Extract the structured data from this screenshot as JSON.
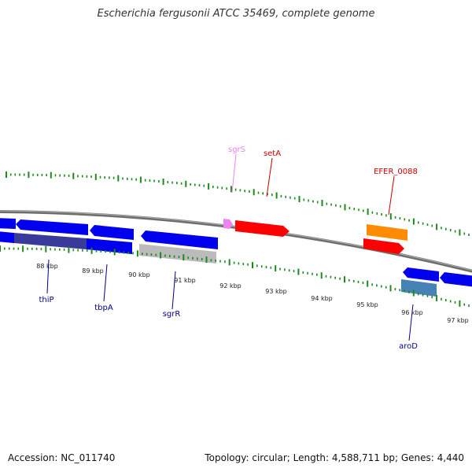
{
  "title": "Escherichia fergusonii ATCC 35469, complete genome",
  "footer": {
    "accession": "Accession: NC_011740",
    "summary": "Topology: circular; Length: 4,588,711 bp; Genes: 4,440"
  },
  "colors": {
    "background": "#ffffff",
    "backbone": "#808080",
    "tick": "#1e8a1e",
    "gene_blue": "#0000ee",
    "gene_blue_dark": "#3a3a9a",
    "gene_red": "#ff0000",
    "gene_orange": "#ff8c00",
    "gene_pink": "#ee82ee",
    "gene_gray": "#bbbbbb",
    "gene_steel": "#4682b4",
    "label_blue": "#00008b",
    "label_red": "#cc0000",
    "label_pink": "#ee82ee"
  },
  "scale": {
    "unit": "kbp",
    "tick_labels": [
      "88 kbp",
      "89 kbp",
      "90 kbp",
      "91 kbp",
      "92 kbp",
      "93 kbp",
      "94 kbp",
      "95 kbp",
      "96 kbp",
      "97 kbp"
    ]
  },
  "gene_labels": [
    {
      "name": "thiP",
      "strand": "minus",
      "color": "label_blue"
    },
    {
      "name": "tbpA",
      "strand": "minus",
      "color": "label_blue"
    },
    {
      "name": "sgrR",
      "strand": "minus",
      "color": "label_blue"
    },
    {
      "name": "sgrS",
      "strand": "plus",
      "color": "label_pink"
    },
    {
      "name": "setA",
      "strand": "plus",
      "color": "label_red"
    },
    {
      "name": "EFER_0088",
      "strand": "plus",
      "color": "label_red"
    },
    {
      "name": "aroD",
      "strand": "minus",
      "color": "label_blue"
    }
  ]
}
